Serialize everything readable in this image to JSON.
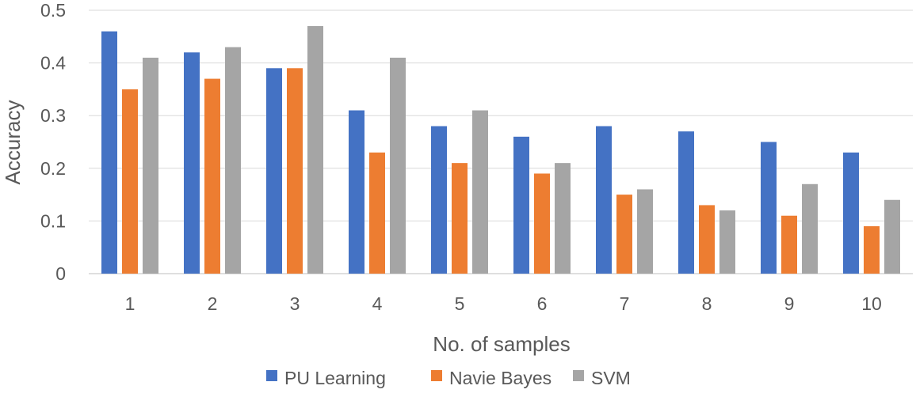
{
  "chart_data": {
    "type": "bar",
    "title": "",
    "xlabel": "No. of samples",
    "ylabel": "Accuracy",
    "categories": [
      "1",
      "2",
      "3",
      "4",
      "5",
      "6",
      "7",
      "8",
      "9",
      "10"
    ],
    "ylim": [
      0,
      0.5
    ],
    "yticks": [
      "0",
      "0.1",
      "0.2",
      "0.3",
      "0.4",
      "0.5"
    ],
    "grid": true,
    "legend_position": "bottom",
    "series": [
      {
        "name": "PU Learning",
        "color": "#4472C4",
        "values": [
          0.46,
          0.42,
          0.39,
          0.31,
          0.28,
          0.26,
          0.28,
          0.27,
          0.25,
          0.23
        ]
      },
      {
        "name": "Navie Bayes",
        "color": "#ED7D31",
        "values": [
          0.35,
          0.37,
          0.39,
          0.23,
          0.21,
          0.19,
          0.15,
          0.13,
          0.11,
          0.09
        ]
      },
      {
        "name": "SVM",
        "color": "#A5A5A5",
        "values": [
          0.41,
          0.43,
          0.47,
          0.41,
          0.31,
          0.21,
          0.16,
          0.12,
          0.17,
          0.14
        ]
      }
    ]
  }
}
